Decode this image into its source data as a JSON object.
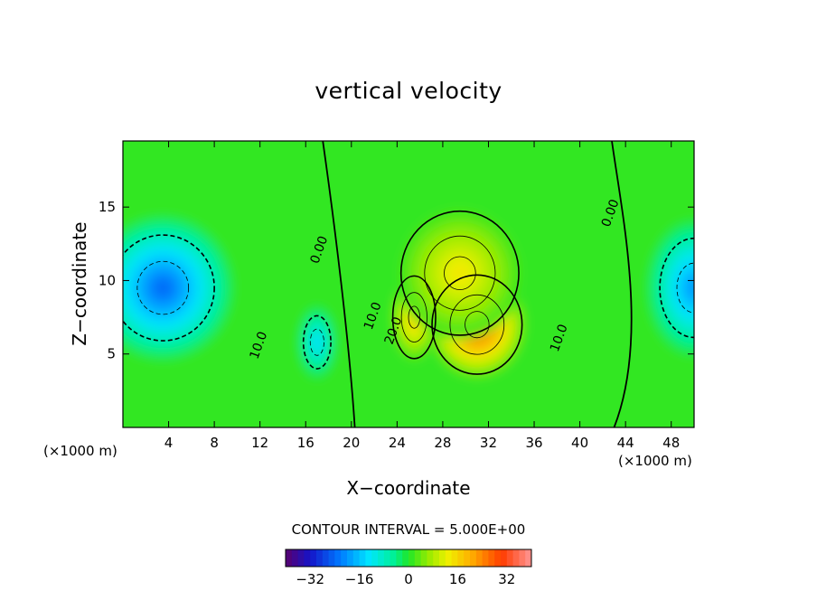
{
  "chart_data": {
    "type": "heatmap",
    "title": "vertical velocity",
    "xlabel": "X−coordinate",
    "ylabel": "Z−coordinate",
    "x_unit_left": "(×1000 m)",
    "x_unit_right": "(×1000 m)",
    "xlim": [
      0,
      50
    ],
    "ylim": [
      0,
      19.5
    ],
    "xticks": [
      4,
      8,
      12,
      16,
      20,
      24,
      28,
      32,
      36,
      40,
      44,
      48
    ],
    "xtick_labels": [
      "4",
      "8",
      "12",
      "16",
      "20",
      "24",
      "28",
      "32",
      "36",
      "40",
      "44",
      "48"
    ],
    "yticks": [
      5,
      10,
      15
    ],
    "ytick_labels": [
      "5",
      "10",
      "15"
    ],
    "contour_interval_text": "CONTOUR INTERVAL = 5.000E+00",
    "contour_labels": [
      {
        "text": "0.00",
        "x": 17.5,
        "z": 12.0
      },
      {
        "text": "0.00",
        "x": 43.0,
        "z": 14.5
      },
      {
        "text": "10.0",
        "x": 12.2,
        "z": 5.5
      },
      {
        "text": "10.0",
        "x": 22.2,
        "z": 7.5
      },
      {
        "text": "20.0",
        "x": 24.0,
        "z": 6.5
      },
      {
        "text": "10.0",
        "x": 38.5,
        "z": 6.0
      }
    ],
    "features": [
      {
        "kind": "downdraft",
        "x": 3.5,
        "z": 9.5,
        "peak": -24,
        "sx": 6.0,
        "sz": 4.8
      },
      {
        "kind": "downdraft",
        "x": 17.0,
        "z": 5.8,
        "peak": -14,
        "sx": 1.6,
        "sz": 2.4
      },
      {
        "kind": "downdraft",
        "x": 50.0,
        "z": 9.5,
        "peak": -20,
        "sx": 4.0,
        "sz": 4.5
      },
      {
        "kind": "updraft",
        "x": 31.0,
        "z": 7.0,
        "peak": 30,
        "sx": 4.2,
        "sz": 3.6
      },
      {
        "kind": "updraft",
        "x": 25.5,
        "z": 7.5,
        "peak": 18,
        "sx": 2.0,
        "sz": 3.0
      },
      {
        "kind": "updraft",
        "x": 29.5,
        "z": 10.5,
        "peak": 14,
        "sx": 5.5,
        "sz": 4.5
      }
    ],
    "colorbar": {
      "ticks": [
        -32,
        -16,
        0,
        16,
        32
      ],
      "tick_labels": [
        "−32",
        "−16",
        "0",
        "16",
        "32"
      ],
      "range": [
        -40,
        40
      ]
    },
    "grid": false,
    "legend": "colorbar-bottom"
  }
}
